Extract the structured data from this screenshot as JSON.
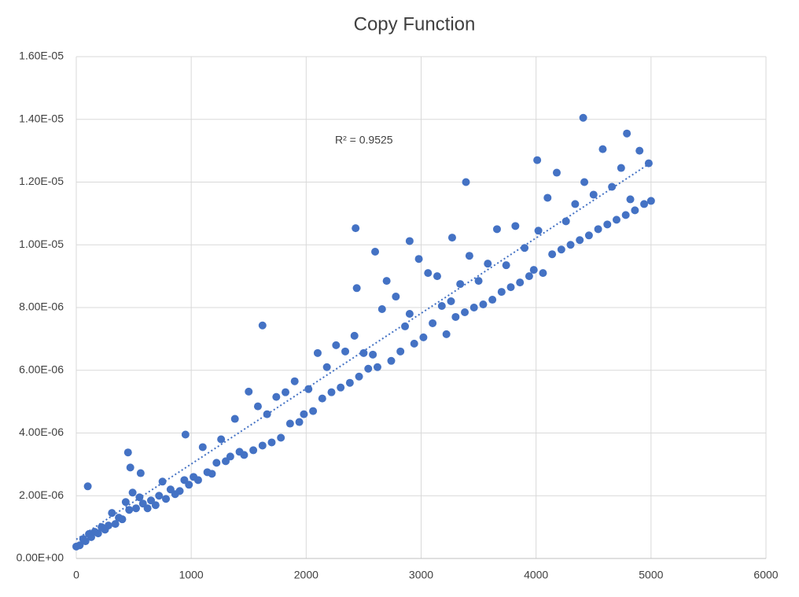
{
  "chart_data": {
    "type": "scatter",
    "title": "Copy Function",
    "annotation": "R² = 0.9525",
    "color": "#4472c4",
    "trendline": true,
    "grid": true,
    "xlim": [
      0,
      6000
    ],
    "xticks": [
      0,
      1000,
      2000,
      3000,
      4000,
      5000,
      6000
    ],
    "ylim": [
      0,
      1.6e-05
    ],
    "yticks": [
      {
        "value": 0,
        "label": "0.00E+00"
      },
      {
        "value": 2e-06,
        "label": "2.00E-06"
      },
      {
        "value": 4e-06,
        "label": "4.00E-06"
      },
      {
        "value": 6e-06,
        "label": "6.00E-06"
      },
      {
        "value": 8e-06,
        "label": "8.00E-06"
      },
      {
        "value": 1e-05,
        "label": "1.00E-05"
      },
      {
        "value": 1.2e-05,
        "label": "1.20E-05"
      },
      {
        "value": 1.4e-05,
        "label": "1.40E-05"
      },
      {
        "value": 1.6e-05,
        "label": "1.60E-05"
      }
    ],
    "x": [
      0,
      30,
      60,
      80,
      110,
      130,
      160,
      190,
      220,
      250,
      280,
      310,
      340,
      370,
      400,
      430,
      460,
      490,
      520,
      550,
      580,
      620,
      650,
      690,
      720,
      750,
      780,
      820,
      860,
      900,
      940,
      980,
      1020,
      1060,
      1100,
      1140,
      1180,
      1220,
      1260,
      1300,
      1340,
      1380,
      1420,
      1460,
      1500,
      1540,
      1580,
      1620,
      1660,
      1700,
      1740,
      1780,
      1820,
      1860,
      1900,
      1940,
      1980,
      2020,
      2060,
      2100,
      2140,
      2180,
      2220,
      2260,
      2300,
      2340,
      2380,
      2420,
      2460,
      2500,
      2540,
      2580,
      2620,
      2660,
      2700,
      2740,
      2780,
      2820,
      2860,
      2900,
      2940,
      2980,
      3020,
      3060,
      3100,
      3140,
      3180,
      3220,
      3260,
      3300,
      3340,
      3380,
      3420,
      3460,
      3500,
      3540,
      3580,
      3620,
      3660,
      3700,
      3740,
      3780,
      3820,
      3860,
      3900,
      3940,
      3980,
      4020,
      4060,
      4100,
      4140,
      4180,
      4220,
      4260,
      4300,
      4340,
      4380,
      4420,
      4460,
      4500,
      4540,
      4580,
      4620,
      4660,
      4700,
      4740,
      4780,
      4820,
      4860,
      4900,
      4940,
      4980,
      5000,
      100,
      450,
      470,
      560,
      950,
      1620,
      2430,
      2440,
      2600,
      2900,
      3390,
      4410,
      4790,
      4010,
      3270
    ],
    "y": [
      3.8e-07,
      4.2e-07,
      6.2e-07,
      5.5e-07,
      7.8e-07,
      6.8e-07,
      8.5e-07,
      8e-07,
      1e-06,
      9.2e-07,
      1.05e-06,
      1.45e-06,
      1.1e-06,
      1.3e-06,
      1.25e-06,
      1.8e-06,
      1.55e-06,
      2.1e-06,
      1.6e-06,
      1.95e-06,
      1.75e-06,
      1.6e-06,
      1.85e-06,
      1.7e-06,
      2e-06,
      2.45e-06,
      1.9e-06,
      2.2e-06,
      2.05e-06,
      2.15e-06,
      2.5e-06,
      2.35e-06,
      2.6e-06,
      2.5e-06,
      3.55e-06,
      2.75e-06,
      2.7e-06,
      3.05e-06,
      3.8e-06,
      3.1e-06,
      3.25e-06,
      4.45e-06,
      3.4e-06,
      3.3e-06,
      5.32e-06,
      3.45e-06,
      4.85e-06,
      3.6e-06,
      4.6e-06,
      3.7e-06,
      5.15e-06,
      3.85e-06,
      5.3e-06,
      4.3e-06,
      5.65e-06,
      4.35e-06,
      4.6e-06,
      5.4e-06,
      4.7e-06,
      6.55e-06,
      5.1e-06,
      6.1e-06,
      5.3e-06,
      6.8e-06,
      5.45e-06,
      6.6e-06,
      5.6e-06,
      7.1e-06,
      5.8e-06,
      6.55e-06,
      6.05e-06,
      6.5e-06,
      6.1e-06,
      7.95e-06,
      8.85e-06,
      6.3e-06,
      8.35e-06,
      6.6e-06,
      7.4e-06,
      7.8e-06,
      6.85e-06,
      9.55e-06,
      7.05e-06,
      9.1e-06,
      7.5e-06,
      9e-06,
      8.05e-06,
      7.15e-06,
      8.2e-06,
      7.7e-06,
      8.75e-06,
      7.85e-06,
      9.65e-06,
      8e-06,
      8.85e-06,
      8.1e-06,
      9.4e-06,
      8.25e-06,
      1.05e-05,
      8.5e-06,
      9.35e-06,
      8.65e-06,
      1.06e-05,
      8.8e-06,
      9.9e-06,
      9e-06,
      9.2e-06,
      1.045e-05,
      9.1e-06,
      1.15e-05,
      9.7e-06,
      1.23e-05,
      9.85e-06,
      1.075e-05,
      1e-05,
      1.13e-05,
      1.015e-05,
      1.2e-05,
      1.03e-05,
      1.16e-05,
      1.05e-05,
      1.305e-05,
      1.065e-05,
      1.185e-05,
      1.08e-05,
      1.245e-05,
      1.095e-05,
      1.145e-05,
      1.11e-05,
      1.3e-05,
      1.13e-05,
      1.26e-05,
      1.14e-05,
      2.3e-06,
      3.38e-06,
      2.9e-06,
      2.72e-06,
      3.95e-06,
      7.43e-06,
      1.053e-05,
      8.62e-06,
      9.78e-06,
      1.012e-05,
      1.2e-05,
      1.405e-05,
      1.355e-05,
      1.27e-05,
      1.023e-05
    ]
  }
}
